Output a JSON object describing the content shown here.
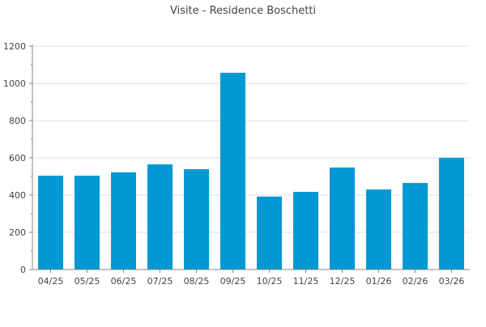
{
  "chart_data": {
    "type": "bar",
    "title": "Visite - Residence Boschetti",
    "xlabel": "",
    "ylabel": "",
    "categories": [
      "04/25",
      "05/25",
      "06/25",
      "07/25",
      "08/25",
      "09/25",
      "10/25",
      "11/25",
      "12/25",
      "01/26",
      "02/26",
      "03/26"
    ],
    "values": [
      504,
      504,
      522,
      565,
      539,
      1057,
      392,
      417,
      548,
      430,
      465,
      600
    ],
    "ylim": [
      0,
      1200
    ],
    "yticks": [
      "0",
      "200",
      "400",
      "600",
      "800",
      "1000",
      "1200"
    ],
    "grid": true,
    "legend": "none",
    "bar_color": "#0099d6"
  }
}
